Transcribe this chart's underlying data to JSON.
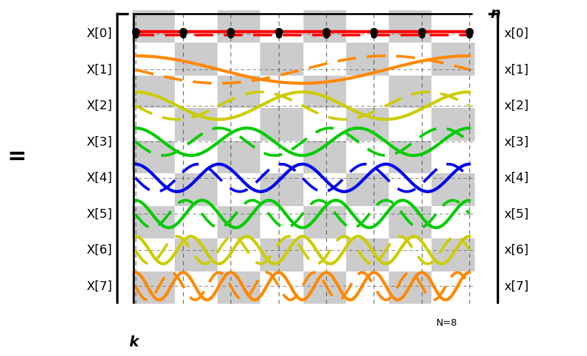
{
  "N": 8,
  "left_labels": [
    "X[0]",
    "X[1]",
    "X[2]",
    "X[3]",
    "X[4]",
    "X[5]",
    "X[6]",
    "X[7]"
  ],
  "right_labels": [
    "x[0]",
    "x[1]",
    "x[2]",
    "x[3]",
    "x[4]",
    "x[5]",
    "x[6]",
    "x[7]"
  ],
  "row_colors": [
    "#ff0000",
    "#ff8800",
    "#cccc00",
    "#00cc00",
    "#0000ee",
    "#00cc00",
    "#cccc00",
    "#ff8800"
  ],
  "checkerboard_color1": "#cccccc",
  "checkerboard_color2": "#ffffff",
  "lw_solid": 3.2,
  "lw_dashed": 2.8,
  "dot_color": "#000000",
  "dot_size": 55,
  "label_fontsize": 13,
  "eq_fontsize": 24,
  "axis_label_fontsize": 15
}
